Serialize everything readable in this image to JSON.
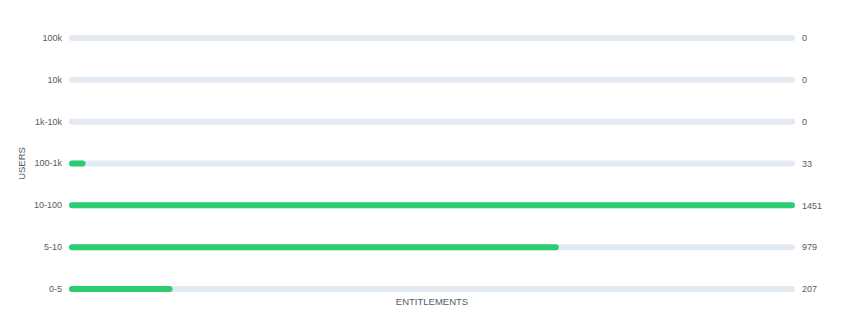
{
  "chart_data": {
    "type": "bar",
    "orientation": "horizontal",
    "categories": [
      "100k",
      "10k",
      "1k-10k",
      "100-1k",
      "10-100",
      "5-10",
      "0-5"
    ],
    "values": [
      0,
      0,
      0,
      33,
      1451,
      979,
      207
    ],
    "color": "#2ecc71",
    "xlim": [
      0,
      1451
    ],
    "x_label": "ENTITLEMENTS",
    "y_label": "USERS",
    "data_labels": true,
    "tick_labels": "y",
    "grid": false
  }
}
